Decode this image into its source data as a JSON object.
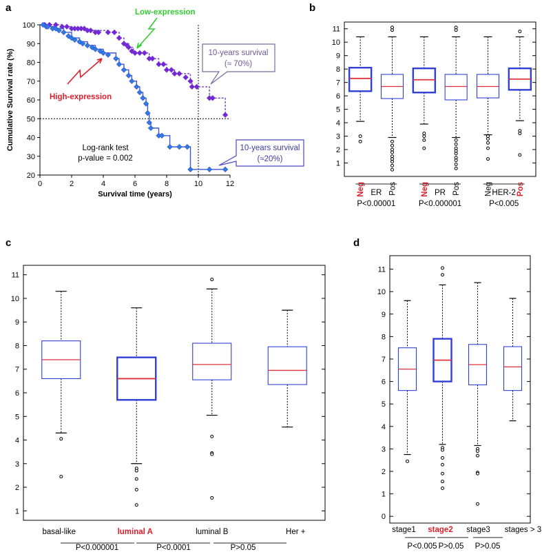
{
  "colors": {
    "low": "#7b22d6",
    "low_line": "#6b3fd0",
    "high": "#2a7fe0",
    "high_line": "#3a55d8",
    "box": "#2f3fd6",
    "median": "#e0303a",
    "red_label": "#e01e2a",
    "green_label": "#33cc33",
    "callout_low": "#7a6a9c",
    "callout_high": "#4a48c8"
  },
  "panels": {
    "a": {
      "label": "a",
      "ylabel": "Cumulative Survival rate (%)",
      "xlabel": "Survival time (years)",
      "low_label": "Low-expression",
      "high_label": "High-expression",
      "test_line1": "Log-rank test",
      "test_line2": "p-value = 0.002",
      "callout_low_line1": "10-years survival",
      "callout_low_line2": "(≈ 70%)",
      "callout_high_line1": "10-years survival",
      "callout_high_line2": "(≈20%)"
    },
    "b": {
      "label": "b"
    },
    "c": {
      "label": "c"
    },
    "d": {
      "label": "d"
    }
  },
  "chart_data": [
    {
      "id": "a",
      "type": "line",
      "title": "",
      "xlabel": "Survival time (years)",
      "ylabel": "Cumulative Survival rate (%)",
      "xlim": [
        0,
        12
      ],
      "ylim": [
        20,
        100
      ],
      "xticks": [
        0,
        2,
        4,
        6,
        8,
        10,
        12
      ],
      "yticks": [
        20,
        30,
        40,
        50,
        60,
        70,
        80,
        90,
        100
      ],
      "reference_lines": {
        "x": 10,
        "y": 50
      },
      "series": [
        {
          "name": "Low-expression",
          "steps": [
            [
              0,
              100
            ],
            [
              1.4,
              99
            ],
            [
              2.0,
              98
            ],
            [
              3.0,
              97
            ],
            [
              4.3,
              96
            ],
            [
              5.0,
              93
            ],
            [
              5.3,
              90
            ],
            [
              5.6,
              88
            ],
            [
              5.9,
              85
            ],
            [
              6.9,
              82
            ],
            [
              7.5,
              79
            ],
            [
              8.0,
              76
            ],
            [
              8.5,
              74
            ],
            [
              9.5,
              70
            ],
            [
              9.6,
              67
            ],
            [
              10.7,
              61
            ],
            [
              11.7,
              52
            ],
            [
              11.8,
              52
            ]
          ],
          "markers": [
            [
              0.3,
              100
            ],
            [
              0.6,
              100
            ],
            [
              1.0,
              100
            ],
            [
              1.4,
              99
            ],
            [
              1.7,
              99
            ],
            [
              2.0,
              98
            ],
            [
              2.2,
              98
            ],
            [
              2.4,
              98
            ],
            [
              2.6,
              98
            ],
            [
              2.8,
              98
            ],
            [
              3.0,
              97
            ],
            [
              3.2,
              97
            ],
            [
              3.5,
              96
            ],
            [
              3.7,
              96
            ],
            [
              4.3,
              96
            ],
            [
              4.7,
              96
            ],
            [
              5.0,
              93
            ],
            [
              5.3,
              90
            ],
            [
              5.5,
              89
            ],
            [
              5.6,
              88
            ],
            [
              5.8,
              86
            ],
            [
              6.0,
              85
            ],
            [
              6.3,
              85
            ],
            [
              6.6,
              85
            ],
            [
              6.9,
              82
            ],
            [
              7.1,
              82
            ],
            [
              7.5,
              79
            ],
            [
              7.8,
              79
            ],
            [
              8.0,
              76
            ],
            [
              8.3,
              76
            ],
            [
              8.5,
              74
            ],
            [
              8.8,
              74
            ],
            [
              9.2,
              72
            ],
            [
              9.5,
              70
            ],
            [
              9.6,
              67
            ],
            [
              9.9,
              67
            ],
            [
              10.7,
              61
            ],
            [
              10.9,
              61
            ],
            [
              11.7,
              52
            ]
          ]
        },
        {
          "name": "High-expression",
          "steps": [
            [
              0,
              100
            ],
            [
              0.5,
              99
            ],
            [
              1.0,
              98
            ],
            [
              1.5,
              96
            ],
            [
              2.0,
              93
            ],
            [
              2.5,
              91
            ],
            [
              3.0,
              89
            ],
            [
              3.5,
              87
            ],
            [
              4.0,
              85
            ],
            [
              4.8,
              82
            ],
            [
              5.0,
              79
            ],
            [
              5.3,
              76
            ],
            [
              5.6,
              73
            ],
            [
              5.8,
              70
            ],
            [
              6.1,
              67
            ],
            [
              6.3,
              64
            ],
            [
              6.5,
              61
            ],
            [
              6.7,
              58
            ],
            [
              6.8,
              53
            ],
            [
              6.9,
              48
            ],
            [
              7.0,
              45
            ],
            [
              7.5,
              41
            ],
            [
              8.2,
              35
            ],
            [
              9.5,
              23
            ],
            [
              11.8,
              23
            ]
          ],
          "markers": [
            [
              0.2,
              100
            ],
            [
              0.4,
              99
            ],
            [
              0.5,
              99
            ],
            [
              0.8,
              98
            ],
            [
              1.0,
              98
            ],
            [
              1.2,
              97
            ],
            [
              1.5,
              96
            ],
            [
              1.8,
              94
            ],
            [
              2.0,
              93
            ],
            [
              2.2,
              92
            ],
            [
              2.5,
              91
            ],
            [
              2.7,
              90
            ],
            [
              3.0,
              89
            ],
            [
              3.3,
              88
            ],
            [
              3.5,
              87
            ],
            [
              3.8,
              86
            ],
            [
              4.0,
              85
            ],
            [
              4.3,
              84
            ],
            [
              4.8,
              82
            ],
            [
              5.0,
              79
            ],
            [
              5.3,
              76
            ],
            [
              5.6,
              73
            ],
            [
              5.8,
              70
            ],
            [
              6.1,
              67
            ],
            [
              6.3,
              64
            ],
            [
              6.5,
              61
            ],
            [
              6.7,
              58
            ],
            [
              6.8,
              53
            ],
            [
              6.9,
              48
            ],
            [
              7.0,
              45
            ],
            [
              7.5,
              41
            ],
            [
              7.7,
              41
            ],
            [
              8.2,
              35
            ],
            [
              8.8,
              35
            ],
            [
              9.3,
              35
            ],
            [
              9.5,
              23
            ],
            [
              10.7,
              23
            ],
            [
              11.7,
              23
            ]
          ]
        }
      ]
    },
    {
      "id": "b",
      "type": "box",
      "ylim": [
        0,
        11.5
      ],
      "yticks": [
        1,
        2,
        3,
        4,
        5,
        6,
        7,
        8,
        9,
        10,
        11
      ],
      "boxes": [
        {
          "label": "Neg",
          "highlight": true,
          "bold": true,
          "whislo": 4.1,
          "q1": 6.35,
          "med": 7.3,
          "q3": 8.1,
          "whishi": 10.4,
          "fliers": [
            3.0,
            2.6
          ]
        },
        {
          "label": "Pos",
          "highlight": false,
          "bold": false,
          "whislo": 2.9,
          "q1": 5.8,
          "med": 6.7,
          "q3": 7.6,
          "whishi": 10.4,
          "fliers": [
            10.9,
            11.1,
            2.6,
            2.3,
            2.0,
            1.8,
            1.5,
            1.3,
            1.1,
            0.8,
            0.5
          ]
        },
        {
          "label": "Neg",
          "highlight": true,
          "bold": true,
          "whislo": 3.9,
          "q1": 6.25,
          "med": 7.2,
          "q3": 8.05,
          "whishi": 10.4,
          "fliers": [
            3.2,
            3.0,
            2.7,
            2.1
          ]
        },
        {
          "label": "Pos",
          "highlight": false,
          "bold": false,
          "whislo": 2.9,
          "q1": 5.7,
          "med": 6.7,
          "q3": 7.6,
          "whishi": 10.4,
          "fliers": [
            10.9,
            11.1,
            2.7,
            2.4,
            2.1,
            1.9,
            1.7,
            1.4,
            1.2,
            0.9,
            0.6
          ]
        },
        {
          "label": "Neg",
          "highlight": false,
          "bold": false,
          "whislo": 3.1,
          "q1": 5.85,
          "med": 6.7,
          "q3": 7.6,
          "whishi": 10.4,
          "fliers": [
            3.0,
            2.8,
            2.5,
            2.1,
            1.3
          ]
        },
        {
          "label": "Pos",
          "highlight": true,
          "bold": true,
          "whislo": 4.15,
          "q1": 6.45,
          "med": 7.25,
          "q3": 8.05,
          "whishi": 10.4,
          "fliers": [
            10.8,
            3.4,
            3.2,
            1.6
          ]
        }
      ],
      "groups": [
        {
          "name": "ER",
          "pvalue": "P<0.00001"
        },
        {
          "name": "PR",
          "pvalue": "P<0.000001"
        },
        {
          "name": "HER-2",
          "pvalue": "P<0.005"
        }
      ]
    },
    {
      "id": "c",
      "type": "box",
      "ylim": [
        0.6,
        11.4
      ],
      "yticks": [
        1,
        2,
        3,
        4,
        5,
        6,
        7,
        8,
        9,
        10,
        11
      ],
      "boxes": [
        {
          "label": "basal-like",
          "highlight": false,
          "bold": false,
          "whislo": 4.3,
          "q1": 6.6,
          "med": 7.4,
          "q3": 8.2,
          "whishi": 10.3,
          "fliers": [
            4.05,
            2.45
          ]
        },
        {
          "label": "luminal A",
          "highlight": true,
          "bold": true,
          "whislo": 3.0,
          "q1": 5.7,
          "med": 6.6,
          "q3": 7.5,
          "whishi": 9.6,
          "fliers": [
            2.8,
            2.7,
            2.35,
            1.9,
            1.25
          ]
        },
        {
          "label": "luminal B",
          "highlight": false,
          "bold": false,
          "whislo": 5.05,
          "q1": 6.55,
          "med": 7.2,
          "q3": 8.1,
          "whishi": 10.4,
          "fliers": [
            10.8,
            4.15,
            3.45,
            3.4,
            1.55
          ]
        },
        {
          "label": "Her +",
          "highlight": false,
          "bold": false,
          "whislo": 4.55,
          "q1": 6.35,
          "med": 6.95,
          "q3": 7.95,
          "whishi": 9.5,
          "fliers": []
        }
      ],
      "comparisons": [
        "P<0.000001",
        "P<0.0001",
        "P>0.05"
      ]
    },
    {
      "id": "d",
      "type": "box",
      "ylim": [
        -0.3,
        11.6
      ],
      "yticks": [
        0,
        1,
        2,
        3,
        4,
        5,
        6,
        7,
        8,
        9,
        10,
        11
      ],
      "boxes": [
        {
          "label": "stage1",
          "highlight": false,
          "bold": false,
          "whislo": 2.75,
          "q1": 5.6,
          "med": 6.55,
          "q3": 7.5,
          "whishi": 9.6,
          "fliers": [
            2.45
          ]
        },
        {
          "label": "stage2",
          "highlight": true,
          "bold": true,
          "whislo": 3.2,
          "q1": 6.0,
          "med": 6.95,
          "q3": 7.9,
          "whishi": 10.3,
          "fliers": [
            11.05,
            10.75,
            3.05,
            2.95,
            2.6,
            2.3,
            1.9,
            1.55,
            1.25
          ]
        },
        {
          "label": "stage3",
          "highlight": false,
          "bold": false,
          "whislo": 3.15,
          "q1": 5.85,
          "med": 6.75,
          "q3": 7.65,
          "whishi": 10.4,
          "fliers": [
            3.0,
            2.9,
            2.7,
            1.95,
            1.9,
            0.55
          ]
        },
        {
          "label": "stages > 3",
          "highlight": false,
          "bold": false,
          "whislo": 4.25,
          "q1": 5.6,
          "med": 6.65,
          "q3": 7.55,
          "whishi": 9.7,
          "fliers": []
        }
      ],
      "comparisons": [
        "P<0.005",
        "P>0.05",
        "P>0.05"
      ]
    }
  ]
}
